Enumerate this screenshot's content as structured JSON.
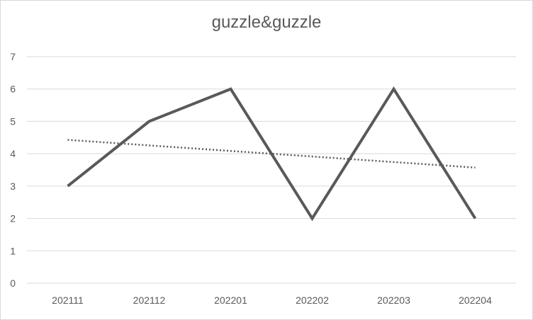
{
  "chart_data": {
    "type": "line",
    "title": "guzzle&guzzle",
    "xlabel": "",
    "ylabel": "",
    "categories": [
      "202111",
      "202112",
      "202201",
      "202202",
      "202203",
      "202204"
    ],
    "series": [
      {
        "values": [
          3,
          5,
          6,
          2,
          6,
          2
        ]
      }
    ],
    "trendline": {
      "type": "linear",
      "style": "dotted"
    },
    "ylim": [
      0,
      7
    ],
    "yticks": [
      0,
      1,
      2,
      3,
      4,
      5,
      6,
      7
    ],
    "grid": true,
    "legend": "none",
    "colors": {
      "series": "#595959",
      "trend": "#595959",
      "grid": "#d9d9d9",
      "text": "#595959"
    }
  }
}
